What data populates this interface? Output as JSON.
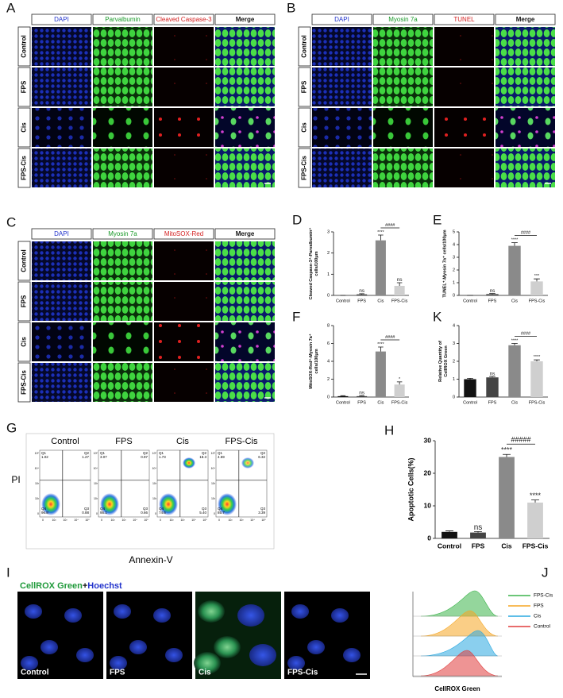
{
  "image_panels": [
    {
      "label": "A",
      "columns": [
        "DAPI",
        "Parvalbumin",
        "Cleaved Caspase-3",
        "Merge"
      ],
      "rows": [
        "Control",
        "FPS",
        "Cis",
        "FPS-Cis"
      ]
    },
    {
      "label": "B",
      "columns": [
        "DAPI",
        "Myosin 7a",
        "TUNEL",
        "Merge"
      ],
      "rows": [
        "Control",
        "FPS",
        "Cis",
        "FPS-Cis"
      ]
    },
    {
      "label": "C",
      "columns": [
        "DAPI",
        "Myosin 7a",
        "MitoSOX-Red",
        "Merge"
      ],
      "rows": [
        "Control",
        "FPS",
        "Cis",
        "FPS-Cis"
      ]
    }
  ],
  "chart_data": [
    {
      "type": "bar",
      "label": "D",
      "y_label": [
        "Cleaved Caspase-3⁺-Parvalbumin⁺",
        "cells/100μm"
      ],
      "categories": [
        "Control",
        "FPS",
        "Cis",
        "FPS-Cis"
      ],
      "values": [
        0,
        0.05,
        2.6,
        0.45
      ],
      "errors": [
        0,
        0.03,
        0.25,
        0.15
      ],
      "colors": [
        "#111111",
        "#444444",
        "#8a8a8a",
        "#cfcfcf"
      ],
      "annotations": [
        null,
        "ns",
        "****",
        "ns"
      ],
      "bracket_label": "####",
      "ylim": [
        0,
        3
      ],
      "yticks": [
        0,
        1,
        2,
        3
      ]
    },
    {
      "type": "bar",
      "label": "E",
      "y_label": [
        "TUNEL⁺-Myosin 7a⁺ cells/100μm"
      ],
      "categories": [
        "Control",
        "FPS",
        "Cis",
        "FPS-Cis"
      ],
      "values": [
        0,
        0.1,
        3.9,
        1.1
      ],
      "errors": [
        0,
        0.05,
        0.25,
        0.2
      ],
      "colors": [
        "#111111",
        "#444444",
        "#8a8a8a",
        "#cfcfcf"
      ],
      "annotations": [
        null,
        "ns",
        "****",
        "***"
      ],
      "bracket_label": "####",
      "ylim": [
        0,
        5
      ],
      "yticks": [
        0,
        1,
        2,
        3,
        4,
        5
      ]
    },
    {
      "type": "bar",
      "label": "F",
      "y_label": [
        "MitoSOX-Red⁺-Myosin 7a⁺",
        "cells/100μm"
      ],
      "categories": [
        "Control",
        "FPS",
        "Cis",
        "FPS-Cis"
      ],
      "values": [
        0.1,
        0.1,
        5.1,
        1.4
      ],
      "errors": [
        0.05,
        0.05,
        0.5,
        0.3
      ],
      "colors": [
        "#111111",
        "#444444",
        "#8a8a8a",
        "#cfcfcf"
      ],
      "annotations": [
        null,
        "ns",
        "****",
        "*"
      ],
      "bracket_label": "####",
      "ylim": [
        0,
        8
      ],
      "yticks": [
        0,
        2,
        4,
        6,
        8
      ]
    },
    {
      "type": "bar",
      "label": "K",
      "y_label": [
        "Relative Quantity of",
        "CellROX Green"
      ],
      "categories": [
        "Control",
        "FPS",
        "Cis",
        "FPS-Cis"
      ],
      "values": [
        1.0,
        1.1,
        2.9,
        2.0
      ],
      "errors": [
        0.05,
        0.05,
        0.1,
        0.08
      ],
      "colors": [
        "#111111",
        "#444444",
        "#8a8a8a",
        "#cfcfcf"
      ],
      "annotations": [
        null,
        "ns",
        "****",
        "****"
      ],
      "bracket_label": "####",
      "ylim": [
        0,
        4
      ],
      "yticks": [
        0,
        1,
        2,
        3,
        4
      ]
    },
    {
      "type": "bar",
      "label": "H",
      "y_label": [
        "Apoptotic Cells(%)"
      ],
      "categories": [
        "Control",
        "FPS",
        "Cis",
        "FPS-Cis"
      ],
      "values": [
        2,
        1.8,
        25,
        11
      ],
      "errors": [
        0.3,
        0.3,
        0.8,
        0.8
      ],
      "colors": [
        "#111111",
        "#444444",
        "#8a8a8a",
        "#cfcfcf"
      ],
      "annotations": [
        null,
        "ns",
        "****",
        "****"
      ],
      "bracket_label": "#####",
      "ylim": [
        0,
        30
      ],
      "yticks": [
        0,
        10,
        20,
        30
      ]
    }
  ],
  "flow_panel": {
    "label": "G",
    "x_label": "Annexin-V",
    "y_label": "PI",
    "quadrant_names": [
      "Q1",
      "Q2",
      "Q3",
      "Q4"
    ],
    "axis_ticks": [
      "0",
      "10²",
      "10³",
      "10⁴",
      "10⁵"
    ],
    "conditions": [
      {
        "name": "Control",
        "quadrants": [
          "1.02",
          "1.27",
          "0.88",
          "96.8"
        ]
      },
      {
        "name": "FPS",
        "quadrants": [
          "3.07",
          "0.97",
          "0.66",
          "95.1"
        ]
      },
      {
        "name": "Cis",
        "quadrants": [
          "1.73",
          "18.3",
          "5.40",
          "74.6"
        ]
      },
      {
        "name": "FPS-Cis",
        "quadrants": [
          "4.59",
          "6.32",
          "3.39",
          "85.7"
        ]
      }
    ]
  },
  "cellrox_panel": {
    "label": "I",
    "title_parts": [
      "CellROX Green",
      "+",
      "Hoechst"
    ],
    "labels": [
      "Control",
      "FPS",
      "Cis",
      "FPS-Cis"
    ]
  },
  "histogram_panel": {
    "label": "J",
    "x_label": "CellROX Green",
    "legend": [
      {
        "name": "FPS-Cis",
        "color": "#3cb44b"
      },
      {
        "name": "FPS",
        "color": "#f5a623"
      },
      {
        "name": "Cis",
        "color": "#29a8e0"
      },
      {
        "name": "Control",
        "color": "#e03c3c"
      }
    ]
  }
}
